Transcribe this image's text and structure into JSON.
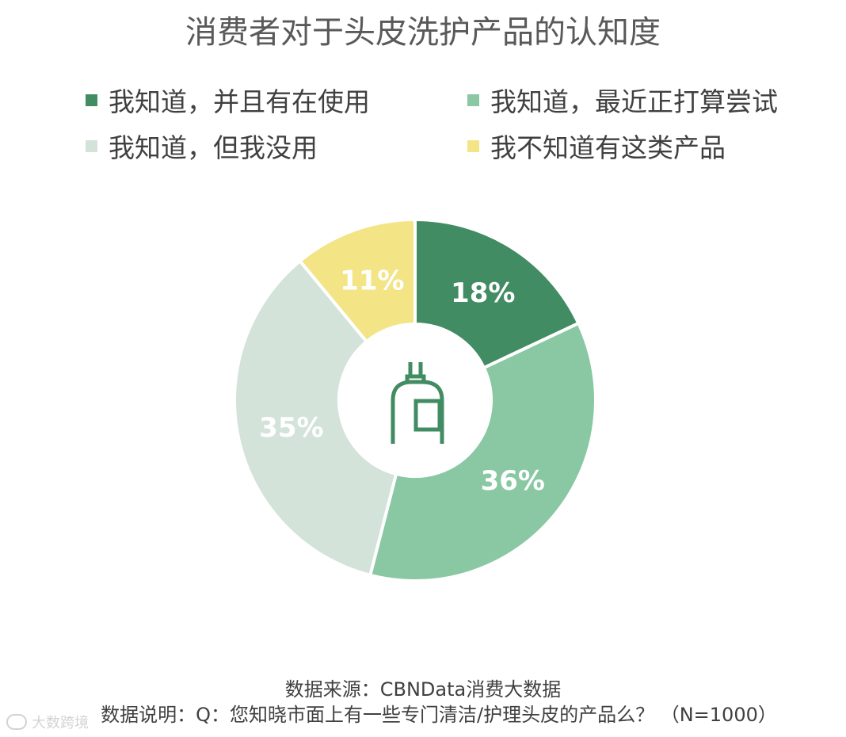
{
  "chart_data": {
    "type": "pie",
    "title": "消费者对于头皮洗护产品的认知度",
    "legend_position": "top",
    "categories": [
      "我知道，并且有在使用",
      "我知道，最近正打算尝试",
      "我知道，但我没用",
      "我不知道有这类产品"
    ],
    "values": [
      18,
      36,
      35,
      11
    ],
    "labels": [
      "18%",
      "36%",
      "35%",
      "11%"
    ],
    "colors": [
      "#418C62",
      "#89C8A3",
      "#D3E3DA",
      "#F3E486"
    ],
    "center_icon": "shampoo-bottle-icon",
    "center_icon_color": "#418C62"
  },
  "footer": {
    "source": "数据来源：CBNData消费大数据",
    "note": "数据说明：Q：您知晓市面上有一些专门清洁/护理头皮的产品么？ （N=1000）"
  },
  "watermark": {
    "text": "大数跨境",
    "icon": "watermark-logo-icon"
  }
}
